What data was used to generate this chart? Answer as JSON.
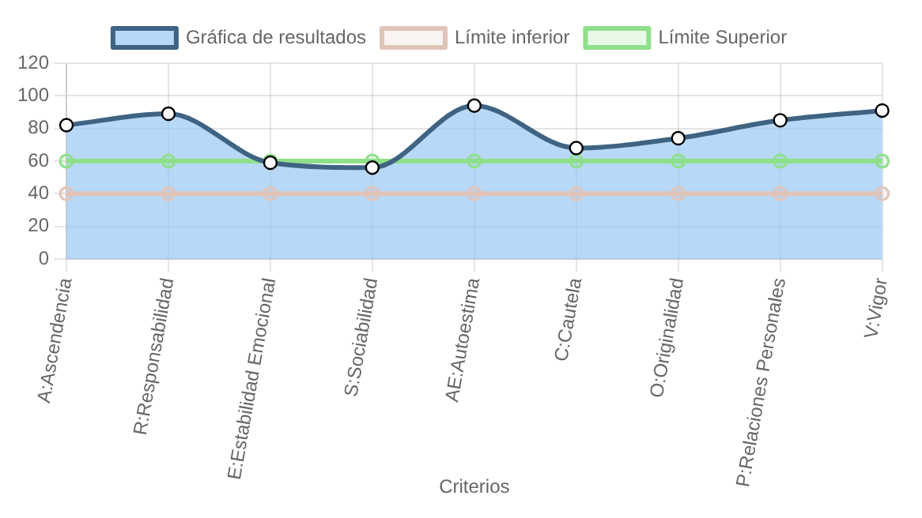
{
  "chart_data": {
    "type": "line",
    "xlabel": "Criterios",
    "categories": [
      "A:Ascendencia",
      "R:Responsabilidad",
      "E:Estabilidad Emocional",
      "S:Sociabilidad",
      "AE:Autoestima",
      "C:Cautela",
      "O:Originalidad",
      "P:Relaciones Personales",
      "V:Vigor"
    ],
    "series": [
      {
        "name": "Gráfica de resultados",
        "type": "area",
        "color": "#3e6383",
        "values": [
          82,
          89,
          59,
          56,
          94,
          68,
          74,
          85,
          91
        ]
      },
      {
        "name": "Límite inferior",
        "type": "line",
        "color": "#e0c4b8",
        "values": [
          40,
          40,
          40,
          40,
          40,
          40,
          40,
          40,
          40
        ]
      },
      {
        "name": "Límite Superior",
        "type": "line",
        "color": "#8ee08a",
        "values": [
          60,
          60,
          60,
          60,
          60,
          60,
          60,
          60,
          60
        ]
      }
    ],
    "ylim": [
      0,
      120
    ],
    "yticks": [
      0,
      20,
      40,
      60,
      80,
      100,
      120
    ],
    "grid": true,
    "legend": "top",
    "marker": "circle",
    "line_style": "solid"
  }
}
